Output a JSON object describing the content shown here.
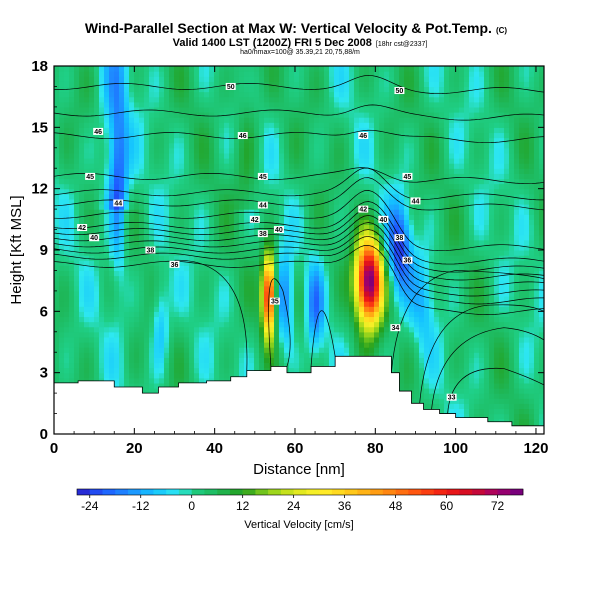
{
  "chart_data": {
    "type": "heatmap",
    "title": "Wind-Parallel Section at Max W: Vertical Velocity & Pot.Temp.",
    "title_mark": "(C)",
    "subtitle": "Valid 1400 LST (1200Z) FRI 5 Dec 2008",
    "subtitle_note": "[18hr cst@2337]",
    "subtitle2": "ha0/hmax=100@ 35.39,21 20,75,88/m",
    "xlabel": "Distance [nm]",
    "ylabel": "Height [Kft MSL]",
    "xlim": [
      0,
      122
    ],
    "ylim": [
      0,
      18
    ],
    "xticks": [
      0,
      20,
      40,
      60,
      80,
      100,
      120
    ],
    "yticks": [
      0,
      3,
      6,
      9,
      12,
      15,
      18
    ],
    "colorbar": {
      "label": "Vertical Velocity [cm/s]",
      "min": -27,
      "max": 78,
      "step": 3,
      "ticks": [
        -24,
        -12,
        0,
        12,
        24,
        36,
        48,
        60,
        72
      ]
    },
    "terrain": [
      [
        0,
        2.3
      ],
      [
        0,
        2.5
      ],
      [
        6,
        2.5
      ],
      [
        6,
        2.6
      ],
      [
        15,
        2.6
      ],
      [
        15,
        2.3
      ],
      [
        22,
        2.3
      ],
      [
        22,
        2.0
      ],
      [
        26,
        2.0
      ],
      [
        26,
        2.3
      ],
      [
        31,
        2.3
      ],
      [
        31,
        2.5
      ],
      [
        38,
        2.5
      ],
      [
        38,
        2.6
      ],
      [
        44,
        2.6
      ],
      [
        44,
        2.8
      ],
      [
        48,
        2.8
      ],
      [
        48,
        3.1
      ],
      [
        54,
        3.1
      ],
      [
        54,
        3.3
      ],
      [
        58,
        3.3
      ],
      [
        58,
        3.0
      ],
      [
        64,
        3.0
      ],
      [
        64,
        3.3
      ],
      [
        70,
        3.3
      ],
      [
        70,
        3.8
      ],
      [
        84,
        3.8
      ],
      [
        84,
        3.0
      ],
      [
        86,
        3.0
      ],
      [
        86,
        2.1
      ],
      [
        89,
        2.1
      ],
      [
        89,
        1.5
      ],
      [
        92,
        1.5
      ],
      [
        92,
        1.2
      ],
      [
        96,
        1.2
      ],
      [
        96,
        1.0
      ],
      [
        100,
        1.0
      ],
      [
        100,
        0.8
      ],
      [
        108,
        0.8
      ],
      [
        108,
        0.6
      ],
      [
        114,
        0.6
      ],
      [
        114,
        0.4
      ],
      [
        122,
        0.4
      ]
    ],
    "updrafts": [
      {
        "x": 53.5,
        "y": 6.8,
        "peak": 60
      },
      {
        "x": 78.5,
        "y": 7.5,
        "peak": 76
      },
      {
        "x": 61.5,
        "y": 6.2,
        "peak": 6
      }
    ],
    "downdrafts": [
      {
        "x": 16,
        "y": 12,
        "peak": -18
      },
      {
        "x": 26.5,
        "y": 5.5,
        "peak": -12
      },
      {
        "x": 57.5,
        "y": 6.5,
        "peak": -18
      },
      {
        "x": 65,
        "y": 6.2,
        "peak": -16
      },
      {
        "x": 86,
        "y": 9.2,
        "peak": -24
      },
      {
        "x": 92,
        "y": 6.6,
        "peak": -10
      }
    ],
    "isentropes": [
      {
        "value": 50,
        "label": "50",
        "label_at": [
          [
            44,
            17.0
          ],
          [
            86,
            16.8
          ]
        ]
      },
      {
        "value": 46,
        "label": "46",
        "label_at": [
          [
            11,
            14.8
          ],
          [
            47,
            14.6
          ],
          [
            77,
            14.6
          ]
        ]
      },
      {
        "value": 45,
        "label": "45",
        "label_at": [
          [
            9,
            12.6
          ],
          [
            52,
            12.6
          ],
          [
            88,
            12.6
          ]
        ]
      },
      {
        "value": 44,
        "label": "44",
        "label_at": [
          [
            16,
            11.3
          ],
          [
            52,
            11.2
          ],
          [
            90,
            11.4
          ]
        ]
      },
      {
        "value": 42,
        "label": "42",
        "label_at": [
          [
            7,
            10.1
          ],
          [
            50,
            10.5
          ],
          [
            77,
            11.0
          ]
        ]
      },
      {
        "value": 40,
        "label": "40",
        "label_at": [
          [
            10,
            9.6
          ],
          [
            56,
            10.0
          ],
          [
            82,
            10.5
          ]
        ]
      },
      {
        "value": 38,
        "label": "38",
        "label_at": [
          [
            24,
            9.0
          ],
          [
            52,
            9.8
          ],
          [
            86,
            9.6
          ]
        ]
      },
      {
        "value": 36,
        "label": "36",
        "label_at": [
          [
            30,
            8.3
          ],
          [
            88,
            8.5
          ]
        ]
      },
      {
        "value": 35,
        "label": "35",
        "label_at": [
          [
            55,
            6.5
          ]
        ]
      },
      {
        "value": 34,
        "label": "34",
        "label_at": [
          [
            85,
            5.2
          ]
        ]
      },
      {
        "value": 33,
        "label": "33",
        "label_at": [
          [
            99,
            1.8
          ]
        ]
      }
    ]
  }
}
